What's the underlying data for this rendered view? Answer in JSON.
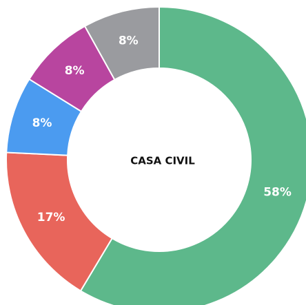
{
  "chart_data": {
    "type": "donut",
    "title": "CASA CIVIL",
    "values": [
      58,
      17,
      8,
      8,
      8
    ],
    "value_labels": [
      "58%",
      "17%",
      "8%",
      "8%",
      "8%"
    ],
    "colors": [
      "#5db88b",
      "#e8655b",
      "#4b9bf0",
      "#b8459f",
      "#9a9b9f"
    ]
  }
}
